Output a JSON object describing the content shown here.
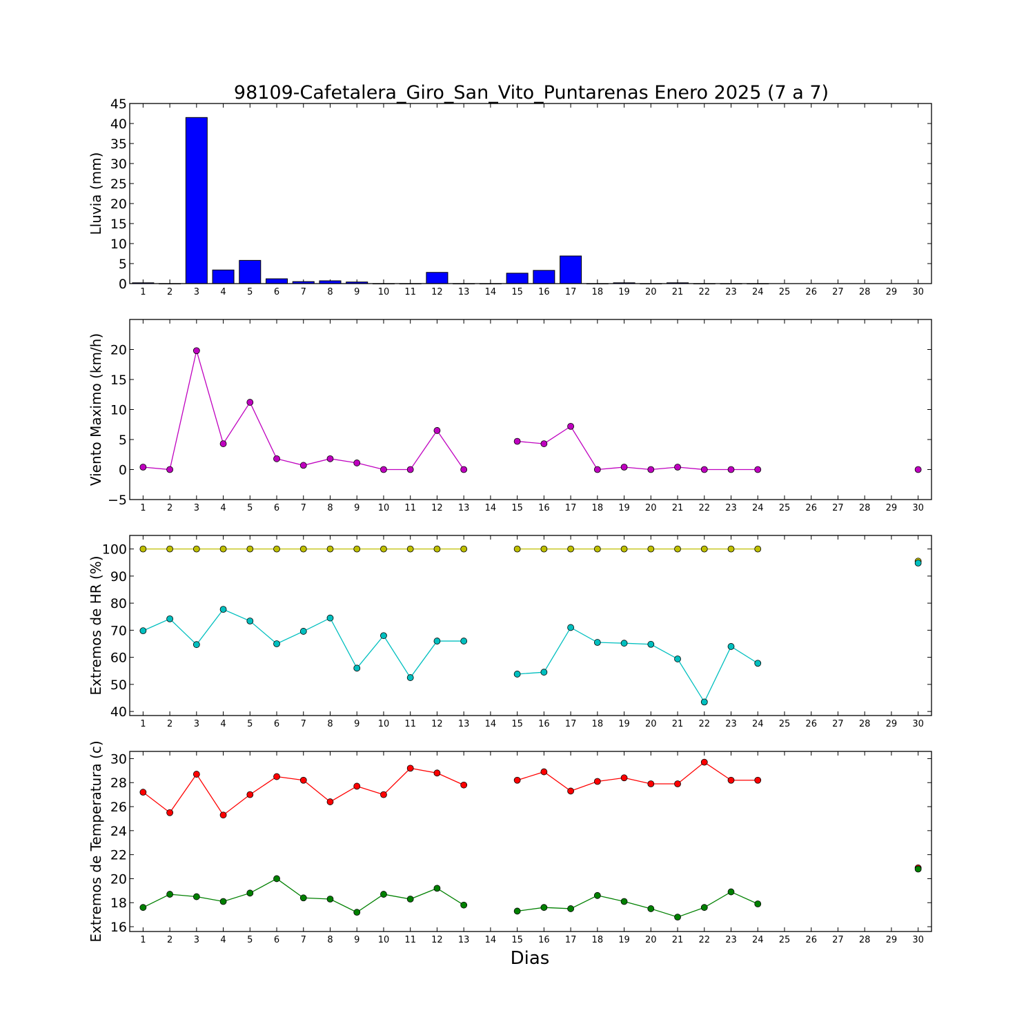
{
  "title": "98109-Cafetalera_Giro_San_Vito_Puntarenas Enero 2025  (7 a 7)",
  "xlabel": "Dias",
  "chart_data": [
    {
      "type": "bar",
      "ylabel": "Lluvia (mm)",
      "ylim": [
        0,
        45
      ],
      "yticks": [
        "0",
        "5",
        "10",
        "15",
        "20",
        "25",
        "30",
        "35",
        "40",
        "45"
      ],
      "x_ticks": [
        "1",
        "2",
        "3",
        "4",
        "5",
        "6",
        "7",
        "8",
        "9",
        "10",
        "11",
        "12",
        "13",
        "14",
        "15",
        "16",
        "17",
        "18",
        "19",
        "20",
        "21",
        "22",
        "23",
        "24",
        "25",
        "26",
        "27",
        "28",
        "29",
        "30"
      ],
      "color": "#0000ff",
      "series": [
        {
          "x": [
            1,
            2,
            3,
            4,
            5,
            6,
            7,
            8,
            9,
            10,
            11,
            12,
            13,
            14,
            15,
            16,
            17,
            18,
            19,
            20,
            21,
            22,
            23,
            24
          ],
          "values": [
            0.2,
            0,
            41.5,
            3.4,
            5.8,
            1.2,
            0.5,
            0.7,
            0.4,
            0,
            0,
            2.8,
            0,
            0,
            2.6,
            3.3,
            6.9,
            0,
            0.2,
            0,
            0.2,
            0,
            0,
            0
          ]
        }
      ]
    },
    {
      "type": "line",
      "ylabel": "Viento Maximo (km/h)",
      "ylim": [
        -5,
        25
      ],
      "yticks": [
        "−5",
        "0",
        "5",
        "10",
        "15",
        "20"
      ],
      "x_ticks": [
        "1",
        "2",
        "3",
        "4",
        "5",
        "6",
        "7",
        "8",
        "9",
        "10",
        "11",
        "12",
        "13",
        "14",
        "15",
        "16",
        "17",
        "18",
        "19",
        "20",
        "21",
        "22",
        "23",
        "24",
        "25",
        "26",
        "27",
        "28",
        "29",
        "30"
      ],
      "series": [
        {
          "color": "#bf00bf",
          "x": [
            1,
            2,
            3,
            4,
            5,
            6,
            7,
            8,
            9,
            10,
            11,
            12,
            13,
            15,
            16,
            17,
            18,
            19,
            20,
            21,
            22,
            23,
            24,
            30
          ],
          "values": [
            0.4,
            0,
            19.8,
            4.3,
            11.2,
            1.8,
            0.7,
            1.8,
            1.1,
            0,
            0,
            6.5,
            0,
            4.7,
            4.3,
            7.2,
            0,
            0.4,
            0,
            0.4,
            0,
            0,
            0,
            0
          ]
        }
      ]
    },
    {
      "type": "line",
      "ylabel": "Extremos de HR (%)",
      "ylim": [
        38.5,
        105
      ],
      "yticks": [
        "40",
        "50",
        "60",
        "70",
        "80",
        "90",
        "100"
      ],
      "x_ticks": [
        "1",
        "2",
        "3",
        "4",
        "5",
        "6",
        "7",
        "8",
        "9",
        "10",
        "11",
        "12",
        "13",
        "14",
        "15",
        "16",
        "17",
        "18",
        "19",
        "20",
        "21",
        "22",
        "23",
        "24",
        "25",
        "26",
        "27",
        "28",
        "29",
        "30"
      ],
      "series": [
        {
          "color": "#bfbf00",
          "x": [
            1,
            2,
            3,
            4,
            5,
            6,
            7,
            8,
            9,
            10,
            11,
            12,
            13,
            15,
            16,
            17,
            18,
            19,
            20,
            21,
            22,
            23,
            24,
            30
          ],
          "values": [
            100,
            100,
            100,
            100,
            100,
            100,
            100,
            100,
            100,
            100,
            100,
            100,
            100,
            100,
            100,
            100,
            100,
            100,
            100,
            100,
            100,
            100,
            100,
            95.5
          ]
        },
        {
          "color": "#00bfbf",
          "x": [
            1,
            2,
            3,
            4,
            5,
            6,
            7,
            8,
            9,
            10,
            11,
            12,
            13,
            15,
            16,
            17,
            18,
            19,
            20,
            21,
            22,
            23,
            24,
            30
          ],
          "values": [
            69.8,
            74.2,
            64.7,
            77.7,
            73.4,
            65,
            69.6,
            74.5,
            56,
            68,
            52.5,
            66,
            66,
            53.8,
            54.5,
            71,
            65.5,
            65.2,
            64.8,
            59.4,
            43.5,
            64,
            57.8,
            94.8
          ]
        }
      ]
    },
    {
      "type": "line",
      "ylabel": "Extremos de Temperatura (c)",
      "ylim": [
        15.6,
        30.6
      ],
      "yticks": [
        "16",
        "18",
        "20",
        "22",
        "24",
        "26",
        "28",
        "30"
      ],
      "x_ticks": [
        "1",
        "2",
        "3",
        "4",
        "5",
        "6",
        "7",
        "8",
        "9",
        "10",
        "11",
        "12",
        "13",
        "14",
        "15",
        "16",
        "17",
        "18",
        "19",
        "20",
        "21",
        "22",
        "23",
        "24",
        "25",
        "26",
        "27",
        "28",
        "29",
        "30"
      ],
      "series": [
        {
          "color": "#ff0000",
          "x": [
            1,
            2,
            3,
            4,
            5,
            6,
            7,
            8,
            9,
            10,
            11,
            12,
            13,
            15,
            16,
            17,
            18,
            19,
            20,
            21,
            22,
            23,
            24,
            30
          ],
          "values": [
            27.2,
            25.5,
            28.7,
            25.3,
            27,
            28.5,
            28.2,
            26.4,
            27.7,
            27,
            29.2,
            28.8,
            27.8,
            28.2,
            28.9,
            27.3,
            28.1,
            28.4,
            27.9,
            27.9,
            29.7,
            28.2,
            28.2,
            20.9
          ]
        },
        {
          "color": "#008000",
          "x": [
            1,
            2,
            3,
            4,
            5,
            6,
            7,
            8,
            9,
            10,
            11,
            12,
            13,
            15,
            16,
            17,
            18,
            19,
            20,
            21,
            22,
            23,
            24,
            30
          ],
          "values": [
            17.6,
            18.7,
            18.5,
            18.1,
            18.8,
            20,
            18.4,
            18.3,
            17.2,
            18.7,
            18.3,
            19.2,
            17.8,
            17.3,
            17.6,
            17.5,
            18.6,
            18.1,
            17.5,
            16.8,
            17.6,
            18.9,
            17.9,
            20.8
          ]
        }
      ]
    }
  ]
}
